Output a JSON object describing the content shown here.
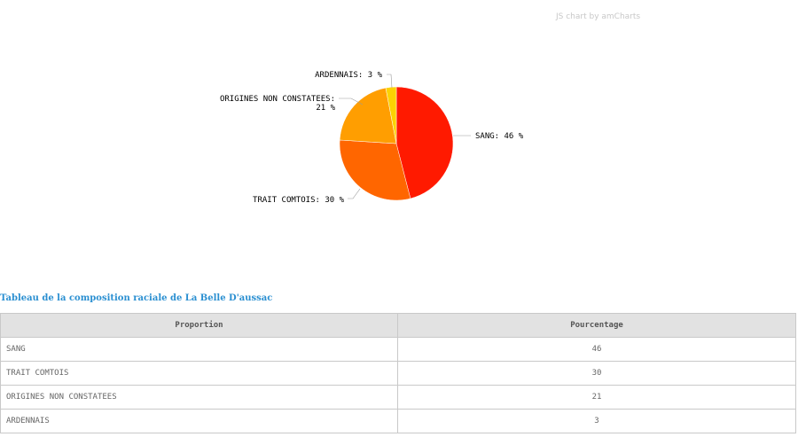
{
  "credit": "JS chart by amCharts",
  "chart_data": {
    "type": "pie",
    "slices": [
      {
        "label": "SANG",
        "value": 46,
        "color": "#ff1a00"
      },
      {
        "label": "TRAIT COMTOIS",
        "value": 30,
        "color": "#ff6600"
      },
      {
        "label": "ORIGINES NON CONSTATEES",
        "value": 21,
        "color": "#ff9e01"
      },
      {
        "label": "ARDENNAIS",
        "value": 3,
        "color": "#fcd202"
      }
    ],
    "label_texts": [
      "SANG: 46 %",
      "TRAIT COMTOIS: 30 %",
      "ORIGINES NON CONSTATEES:",
      "21 %",
      "ARDENNAIS: 3 %"
    ]
  },
  "table": {
    "title": "Tableau de la composition raciale de La Belle D'aussac",
    "headers": [
      "Proportion",
      "Pourcentage"
    ],
    "rows": [
      {
        "proportion": "SANG",
        "pourcentage": "46"
      },
      {
        "proportion": "TRAIT COMTOIS",
        "pourcentage": "30"
      },
      {
        "proportion": "ORIGINES NON CONSTATEES",
        "pourcentage": "21"
      },
      {
        "proportion": "ARDENNAIS",
        "pourcentage": "3"
      }
    ]
  }
}
